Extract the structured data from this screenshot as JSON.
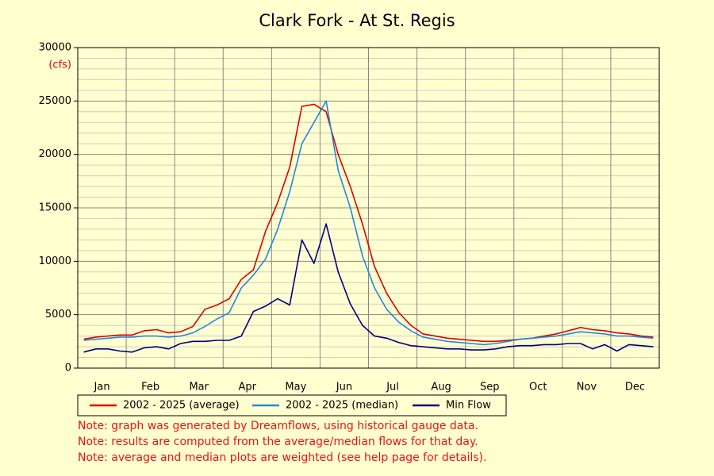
{
  "chart_data": {
    "type": "line",
    "title": "Clark Fork - At St. Regis",
    "y_unit_label": "(cfs)",
    "categories": [
      null,
      "Jan",
      null,
      null,
      null,
      "Feb",
      null,
      null,
      null,
      "Mar",
      null,
      null,
      null,
      "Apr",
      null,
      null,
      null,
      "May",
      null,
      null,
      null,
      "Jun",
      null,
      null,
      null,
      "Jul",
      null,
      null,
      null,
      "Aug",
      null,
      null,
      null,
      "Sep",
      null,
      null,
      null,
      "Oct",
      null,
      null,
      null,
      "Nov",
      null,
      null,
      null,
      "Dec",
      null,
      null
    ],
    "series": [
      {
        "name": "2002 - 2025 (average)",
        "color": "#dd0000",
        "values": [
          2700,
          2900,
          3000,
          3100,
          3100,
          3500,
          3600,
          3300,
          3400,
          3900,
          5500,
          5900,
          6500,
          8300,
          9200,
          12800,
          15500,
          18800,
          24500,
          24700,
          24000,
          20000,
          17000,
          13500,
          9500,
          7000,
          5200,
          4000,
          3200,
          3000,
          2800,
          2700,
          2600,
          2500,
          2500,
          2600,
          2700,
          2800,
          3000,
          3200,
          3500,
          3800,
          3600,
          3500,
          3300,
          3200,
          3000,
          2900
        ]
      },
      {
        "name": "2002 - 2025 (median)",
        "color": "#2288dd",
        "values": [
          2600,
          2700,
          2800,
          2900,
          2900,
          3000,
          3000,
          2900,
          3000,
          3300,
          3900,
          4600,
          5200,
          7500,
          8700,
          10200,
          13000,
          16500,
          21000,
          23000,
          25000,
          18500,
          15000,
          10500,
          7500,
          5500,
          4300,
          3500,
          2900,
          2700,
          2500,
          2400,
          2300,
          2200,
          2300,
          2500,
          2700,
          2800,
          2900,
          3000,
          3200,
          3400,
          3300,
          3200,
          3000,
          3000,
          2900,
          2800
        ]
      },
      {
        "name": "Min Flow",
        "color": "#000080",
        "values": [
          1500,
          1800,
          1800,
          1600,
          1500,
          1900,
          2000,
          1800,
          2300,
          2500,
          2500,
          2600,
          2600,
          3000,
          5300,
          5800,
          6500,
          5900,
          12000,
          9800,
          13500,
          9000,
          6000,
          4000,
          3000,
          2800,
          2400,
          2100,
          2000,
          1900,
          1800,
          1800,
          1700,
          1700,
          1800,
          2000,
          2100,
          2100,
          2200,
          2200,
          2300,
          2300,
          1800,
          2200,
          1600,
          2200,
          2100,
          2000
        ]
      }
    ],
    "ylim": [
      0,
      30000
    ],
    "yticks": [
      0,
      5000,
      10000,
      15000,
      20000,
      25000,
      30000
    ],
    "grid": true,
    "legend": "bottom",
    "notes": [
      "Note: graph was generated by Dreamflows, using historical gauge data.",
      "Note: results are computed from the average/median flows for that day.",
      "Note: average and median plots are weighted (see help page for details)."
    ]
  }
}
